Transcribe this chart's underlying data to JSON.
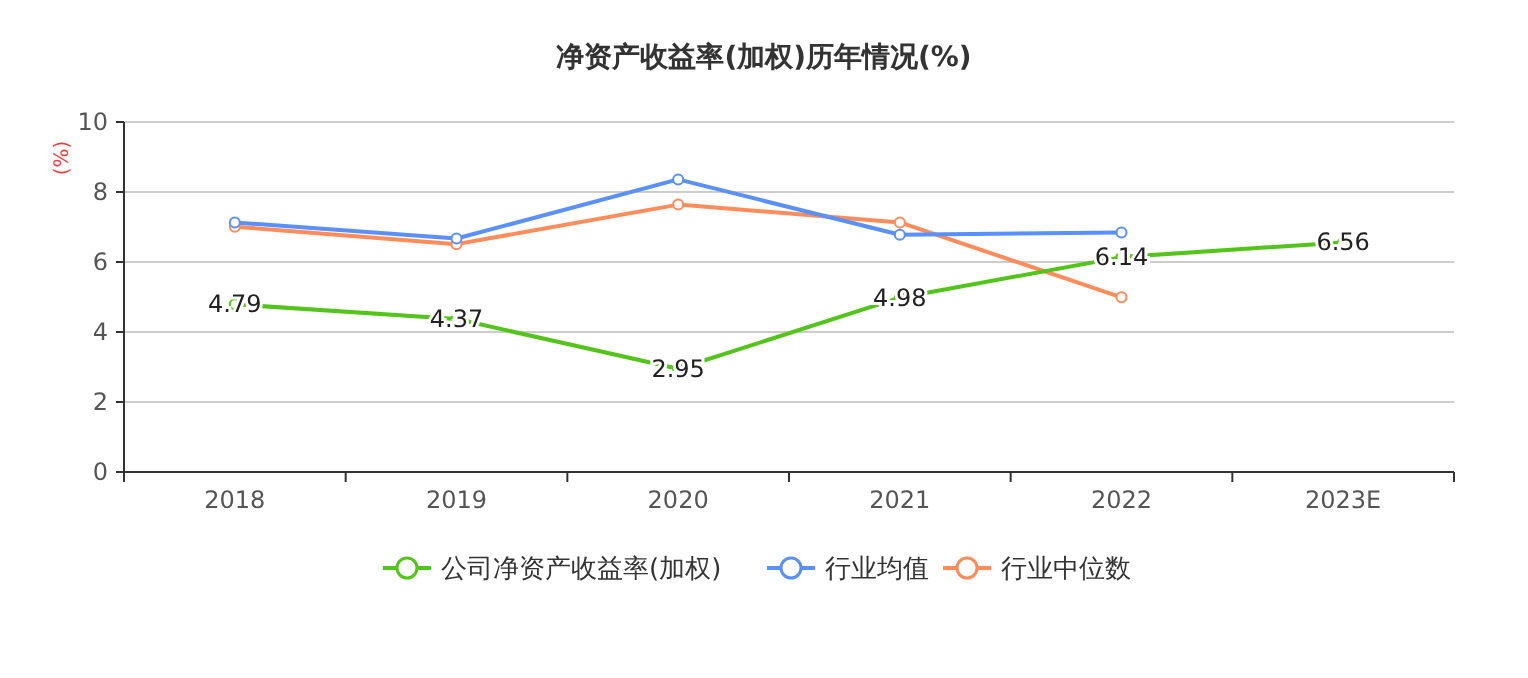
{
  "chart_data": {
    "type": "line",
    "title": "净资产收益率(加权)历年情况(%)",
    "ylabel": "(%)",
    "categories": [
      "2018",
      "2019",
      "2020",
      "2021",
      "2022",
      "2023E"
    ],
    "series": [
      {
        "name": "公司净资产收益率(加权)",
        "color": "#52c41a",
        "values": [
          4.79,
          4.37,
          2.95,
          4.98,
          6.14,
          6.56
        ],
        "value_labels": [
          "4.79",
          "4.37",
          "2.95",
          "4.98",
          "6.14",
          "6.56"
        ]
      },
      {
        "name": "行业均值",
        "color": "#5b8ff9",
        "values": [
          7.13,
          6.67,
          8.36,
          6.78,
          6.84,
          null
        ]
      },
      {
        "name": "行业中位数",
        "color": "#ff8c5a",
        "values": [
          7.01,
          6.51,
          7.64,
          7.13,
          4.99,
          null
        ]
      }
    ],
    "ylim": [
      0,
      10
    ],
    "yticks": [
      0,
      2,
      4,
      6,
      8,
      10
    ],
    "grid": "y",
    "legend": "bottom",
    "marker": "circle",
    "line_style": "solid"
  }
}
